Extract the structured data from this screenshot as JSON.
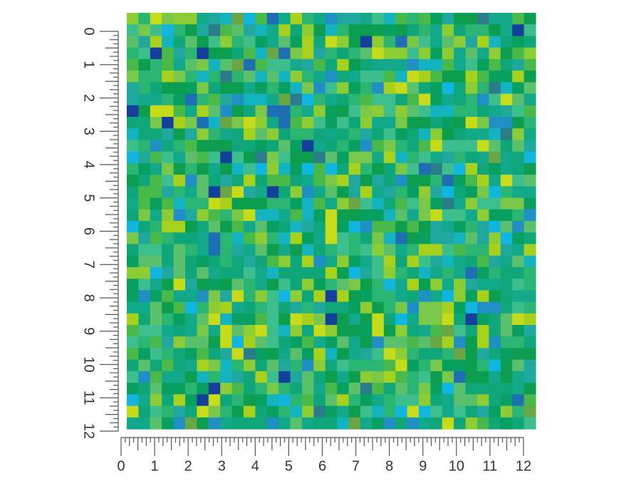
{
  "ruler_vertical": {
    "labels": [
      0,
      1,
      2,
      3,
      4,
      5,
      6,
      7,
      8,
      9,
      10,
      11,
      12
    ]
  },
  "ruler_horizontal": {
    "labels": [
      0,
      1,
      2,
      3,
      4,
      5,
      6,
      7,
      8,
      9,
      10,
      11,
      12
    ]
  }
}
